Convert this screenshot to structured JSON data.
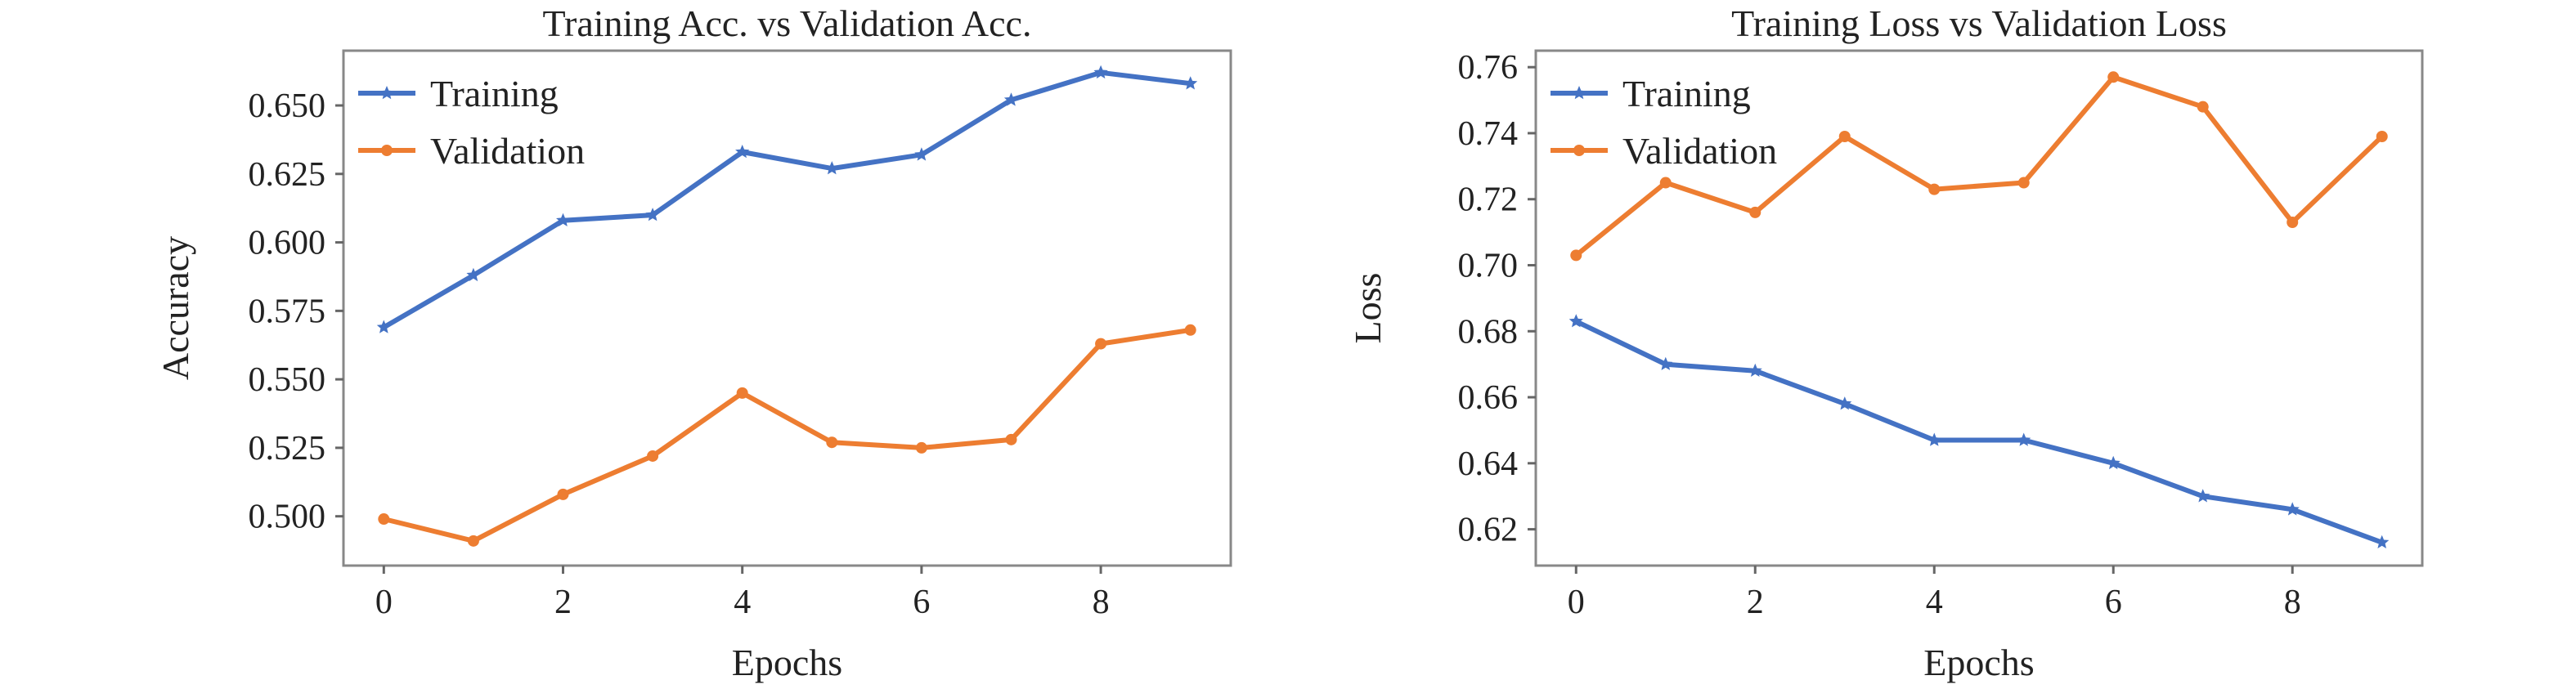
{
  "chart_data": [
    {
      "type": "line",
      "title": "Training Acc. vs Validation Acc.",
      "xlabel": "Epochs",
      "ylabel": "Accuracy",
      "x": [
        0,
        1,
        2,
        3,
        4,
        5,
        6,
        7,
        8,
        9
      ],
      "xlim": [
        -0.45,
        9.45
      ],
      "ylim": [
        0.482,
        0.67
      ],
      "xticks": [
        "0",
        "2",
        "4",
        "6",
        "8"
      ],
      "yticks": [
        "0.500",
        "0.525",
        "0.550",
        "0.575",
        "0.600",
        "0.625",
        "0.650"
      ],
      "legend_position": "top-left",
      "grid": false,
      "series": [
        {
          "name": "Training",
          "color": "#4472c4",
          "marker": "star",
          "values": [
            0.569,
            0.588,
            0.608,
            0.61,
            0.633,
            0.627,
            0.632,
            0.652,
            0.662,
            0.658
          ]
        },
        {
          "name": "Validation",
          "color": "#ed7d31",
          "marker": "circle",
          "values": [
            0.499,
            0.491,
            0.508,
            0.522,
            0.545,
            0.527,
            0.525,
            0.528,
            0.563,
            0.568
          ]
        }
      ]
    },
    {
      "type": "line",
      "title": "Training Loss vs Validation Loss",
      "xlabel": "Epochs",
      "ylabel": "Loss",
      "x": [
        0,
        1,
        2,
        3,
        4,
        5,
        6,
        7,
        8,
        9
      ],
      "xlim": [
        -0.45,
        9.45
      ],
      "ylim": [
        0.609,
        0.765
      ],
      "xticks": [
        "0",
        "2",
        "4",
        "6",
        "8"
      ],
      "yticks": [
        "0.62",
        "0.64",
        "0.66",
        "0.68",
        "0.70",
        "0.72",
        "0.74",
        "0.76"
      ],
      "legend_position": "top-left",
      "grid": false,
      "series": [
        {
          "name": "Training",
          "color": "#4472c4",
          "marker": "star",
          "values": [
            0.683,
            0.67,
            0.668,
            0.658,
            0.647,
            0.647,
            0.64,
            0.63,
            0.626,
            0.616
          ]
        },
        {
          "name": "Validation",
          "color": "#ed7d31",
          "marker": "circle",
          "values": [
            0.703,
            0.725,
            0.716,
            0.739,
            0.723,
            0.725,
            0.757,
            0.748,
            0.713,
            0.739
          ]
        }
      ]
    }
  ]
}
